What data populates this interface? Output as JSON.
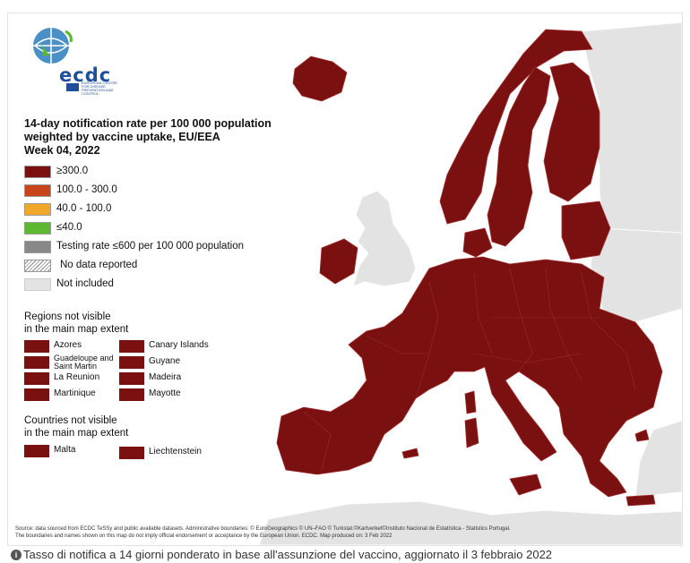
{
  "logo": {
    "text": "ecdc",
    "subtitle": "EUROPEAN CENTRE FOR DISEASE PREVENTION AND CONTROL",
    "icon": "ecdc-globe-logo"
  },
  "title_lines": [
    "14-day notification rate per 100 000 population",
    "weighted by vaccine uptake, EU/EEA",
    "Week 04, 2022"
  ],
  "legend": [
    {
      "label": "≥300.0",
      "color": "#7a1010"
    },
    {
      "label": "100.0 - 300.0",
      "color": "#c8441a"
    },
    {
      "label": "40.0 - 100.0",
      "color": "#f0a82a"
    },
    {
      "label": "≤40.0",
      "color": "#5cb82e"
    },
    {
      "label": "Testing rate ≤600 per 100 000 population",
      "color": "#888888"
    },
    {
      "label": "No data reported",
      "color": "hatch"
    },
    {
      "label": "Not included",
      "color": "#e3e3e3"
    }
  ],
  "regions_title": [
    "Regions not visible",
    "in the main map extent"
  ],
  "regions": [
    {
      "label": "Azores",
      "color": "#7a1010"
    },
    {
      "label": "Canary Islands",
      "color": "#7a1010"
    },
    {
      "label": "Guadeloupe and Saint Martin",
      "color": "#7a1010"
    },
    {
      "label": "Guyane",
      "color": "#7a1010"
    },
    {
      "label": "La Reunion",
      "color": "#7a1010"
    },
    {
      "label": "Madeira",
      "color": "#7a1010"
    },
    {
      "label": "Martinique",
      "color": "#7a1010"
    },
    {
      "label": "Mayotte",
      "color": "#7a1010"
    }
  ],
  "countries_title": [
    "Countries not visible",
    "in the main map extent"
  ],
  "countries": [
    {
      "label": "Malta",
      "color": "#7a1010"
    },
    {
      "label": "Liechtenstein",
      "color": "#7a1010"
    }
  ],
  "footnote_lines": [
    "Source: data sourced from ECDC TeSSy and public available datasets. Administrative boundaries: © EuroGeographics © UN–FAO © Turkstat.©Kartverket©Instituto Nacional de Estatística - Statistics Portugal.",
    "The boundaries and names shown on this map do not imply official endorsement or acceptance by the European Union. ECDC. Map produced on: 3 Feb 2022"
  ],
  "caption": "Tasso di notifica a 14 giorni ponderato in base all'assunzione del vaccino, aggiornato il 3 febbraio 2022",
  "colors": {
    "eu_fill": "#7a1010",
    "not_included": "#e3e3e3",
    "border": "#a03030"
  }
}
